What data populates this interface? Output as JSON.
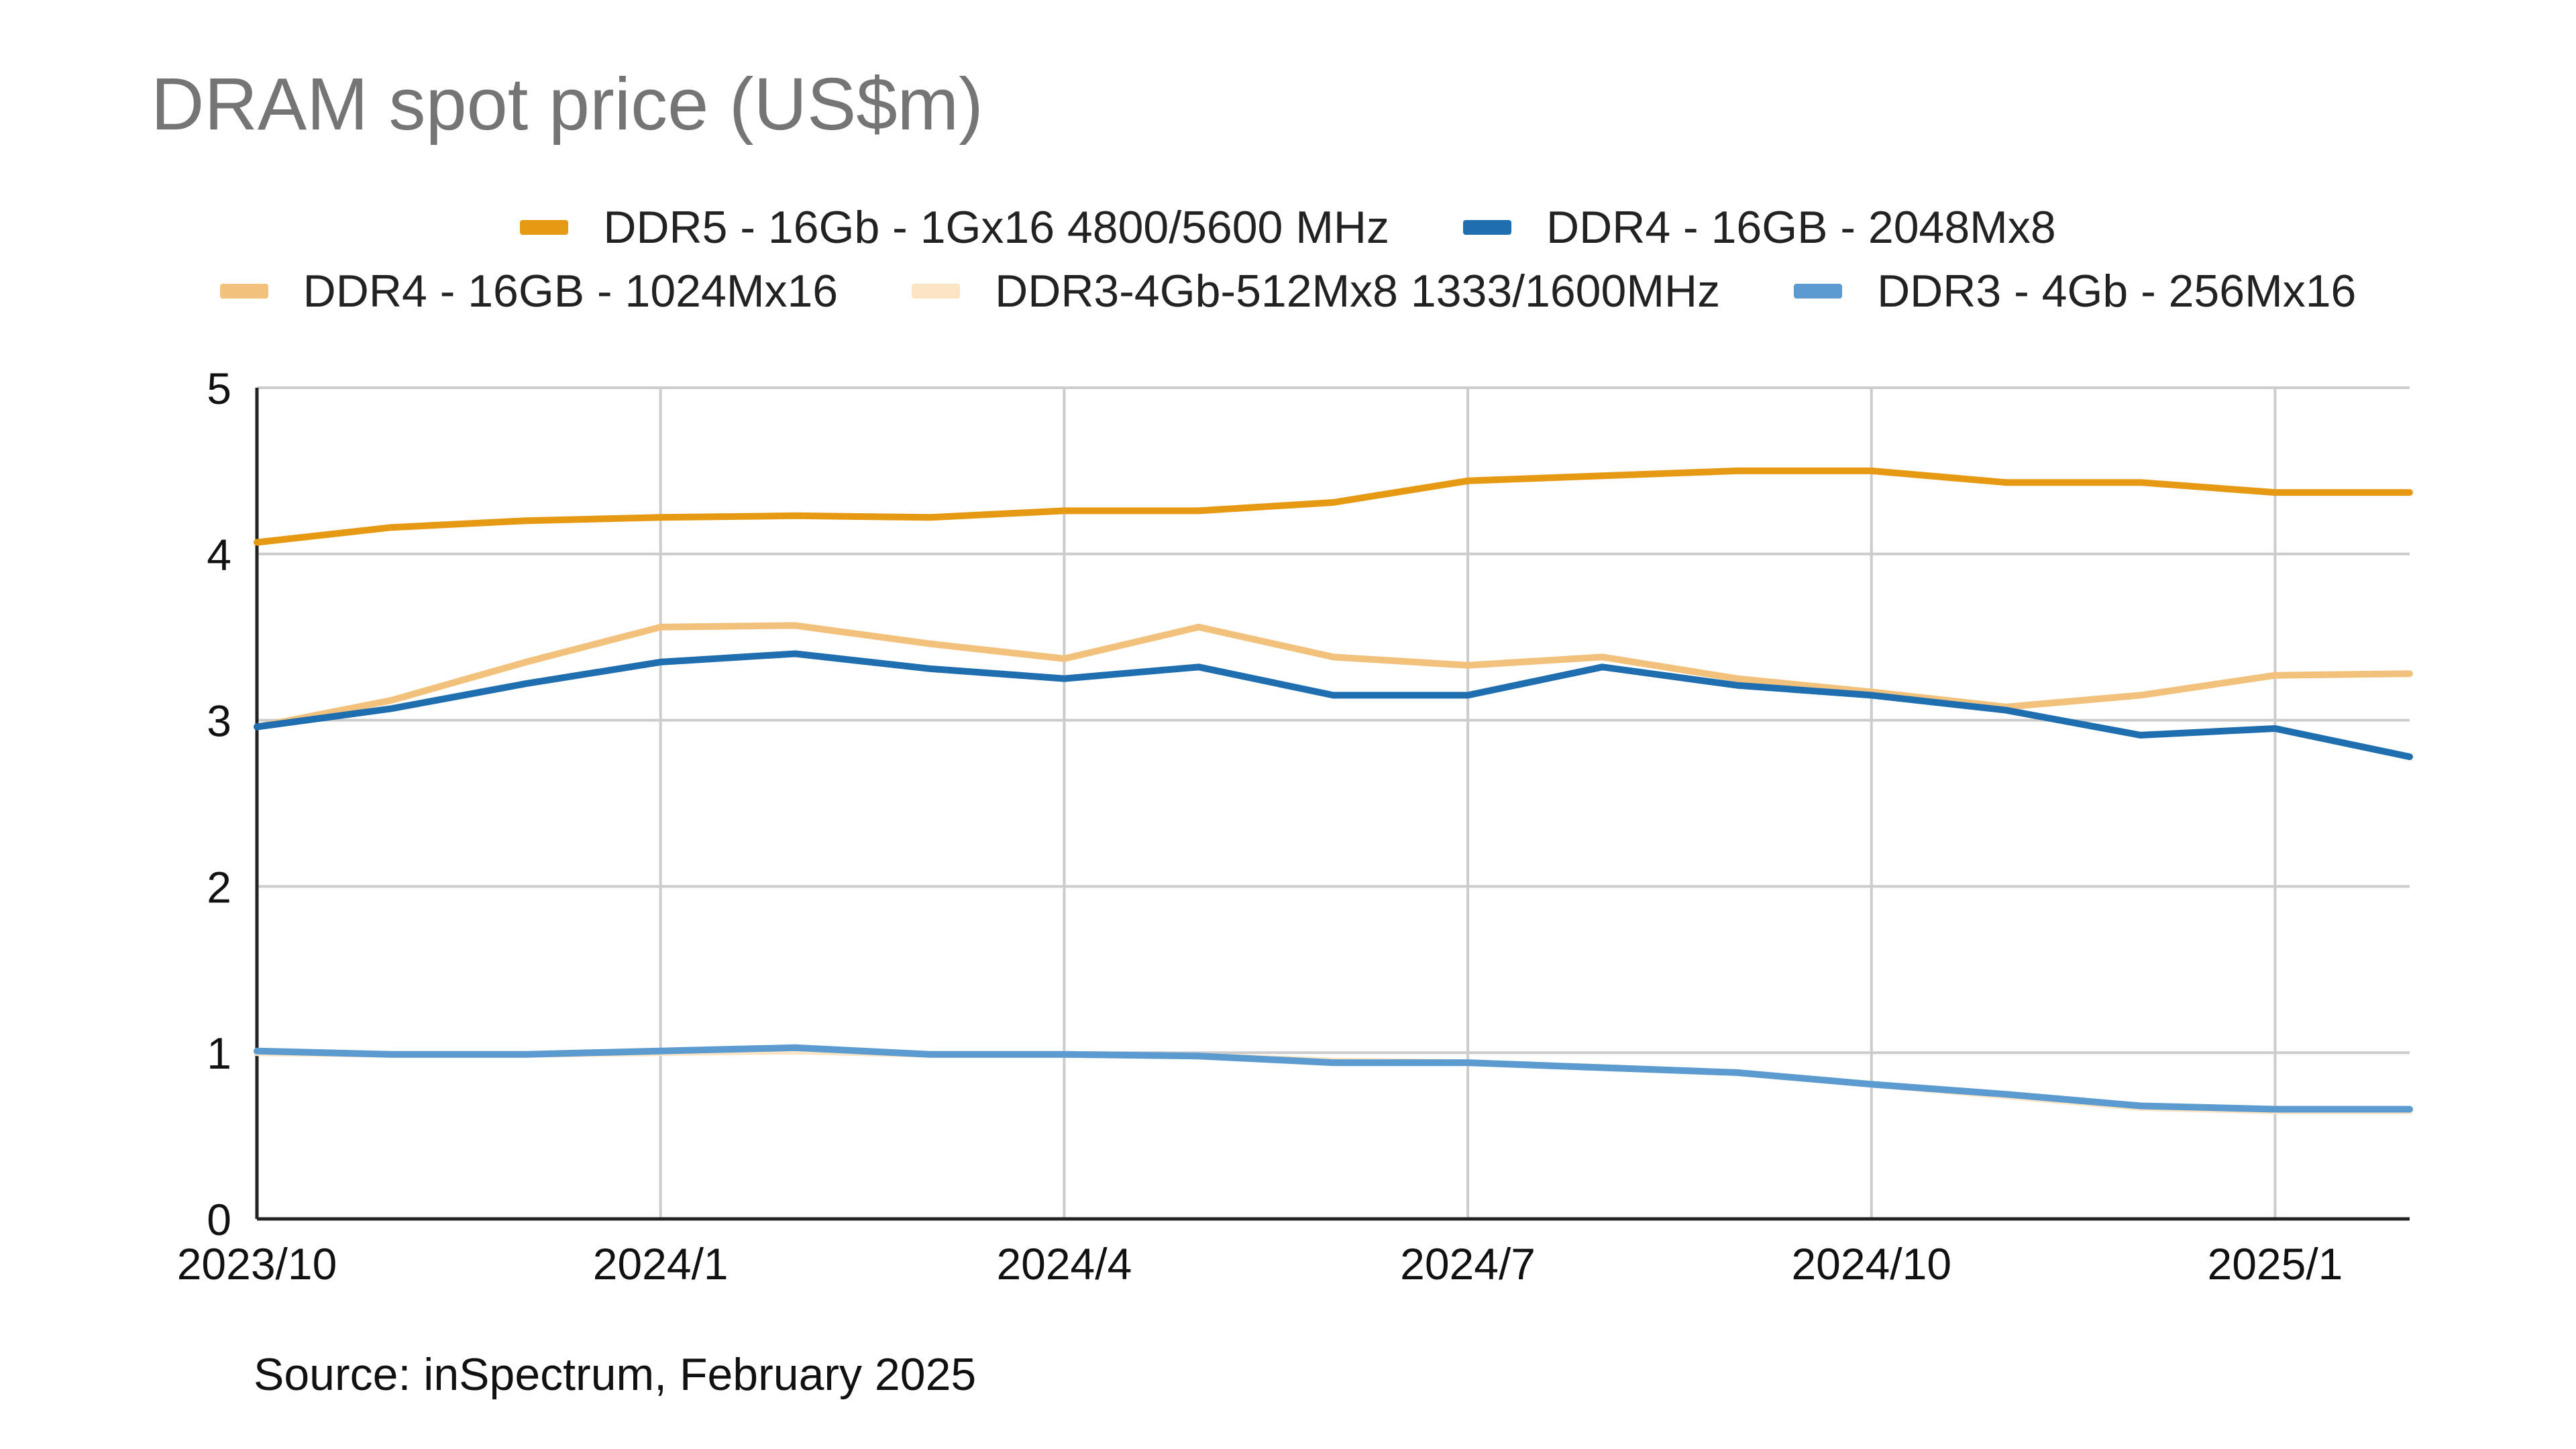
{
  "chart_data": {
    "type": "line",
    "title": "DRAM spot price (US$m)",
    "xlabel": "",
    "ylabel": "",
    "source": "Source: inSpectrum, February 2025",
    "ylim": [
      0,
      5
    ],
    "yticks": [
      "0",
      "1",
      "2",
      "3",
      "4",
      "5"
    ],
    "xticks": [
      {
        "label": "2023/10",
        "index": 0
      },
      {
        "label": "2024/1",
        "index": 3
      },
      {
        "label": "2024/4",
        "index": 6
      },
      {
        "label": "2024/7",
        "index": 9
      },
      {
        "label": "2024/10",
        "index": 12
      },
      {
        "label": "2025/1",
        "index": 15
      }
    ],
    "categories": [
      "2023/10",
      "2023/11",
      "2023/12",
      "2024/1",
      "2024/2",
      "2024/3",
      "2024/4",
      "2024/5",
      "2024/6",
      "2024/7",
      "2024/8",
      "2024/9",
      "2024/10",
      "2024/11",
      "2024/12",
      "2025/1",
      "2025/2"
    ],
    "series": [
      {
        "name": "DDR5 - 16Gb - 1Gx16 4800/5600 MHz",
        "color": "#e69a13",
        "values": [
          4.07,
          4.16,
          4.2,
          4.22,
          4.23,
          4.22,
          4.26,
          4.26,
          4.31,
          4.44,
          4.47,
          4.5,
          4.5,
          4.43,
          4.43,
          4.37,
          4.37
        ]
      },
      {
        "name": "DDR4 - 16GB - 2048Mx8",
        "color": "#1f6eb0",
        "values": [
          2.96,
          3.07,
          3.22,
          3.35,
          3.4,
          3.31,
          3.25,
          3.32,
          3.15,
          3.15,
          3.32,
          3.21,
          3.15,
          3.06,
          2.91,
          2.95,
          2.78
        ]
      },
      {
        "name": "DDR4 - 16GB - 1024Mx16",
        "color": "#f2c27c",
        "values": [
          2.96,
          3.12,
          3.35,
          3.56,
          3.57,
          3.46,
          3.37,
          3.56,
          3.38,
          3.33,
          3.38,
          3.25,
          3.17,
          3.08,
          3.15,
          3.27,
          3.28
        ]
      },
      {
        "name": "DDR3-4Gb-512Mx8 1333/1600MHz",
        "color": "#fbe4c4",
        "values": [
          1.0,
          0.99,
          0.99,
          1.0,
          1.01,
          0.99,
          0.99,
          0.98,
          0.95,
          0.94,
          0.91,
          0.88,
          0.81,
          0.74,
          0.67,
          0.65,
          0.65
        ]
      },
      {
        "name": "DDR3 - 4Gb - 256Mx16",
        "color": "#5b9bd0",
        "values": [
          1.01,
          0.99,
          0.99,
          1.01,
          1.03,
          0.99,
          0.99,
          0.98,
          0.94,
          0.94,
          0.91,
          0.88,
          0.81,
          0.75,
          0.68,
          0.66,
          0.66
        ]
      }
    ]
  }
}
